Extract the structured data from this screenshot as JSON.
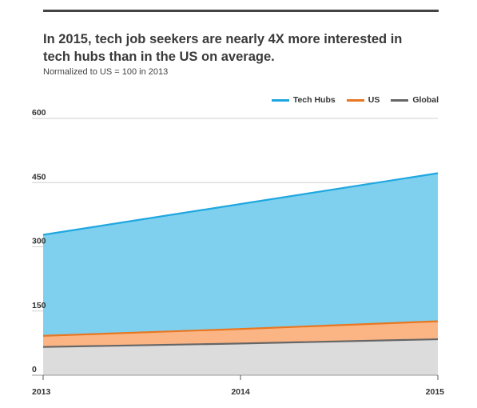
{
  "title": "In 2015, tech job seekers are nearly 4X more interested in tech hubs than in the US on average.",
  "subtitle": "Normalized to US = 100 in 2013",
  "chart_data": {
    "type": "area",
    "x": [
      "2013",
      "2014",
      "2015"
    ],
    "y_ticks": [
      "0",
      "150",
      "300",
      "450",
      "600"
    ],
    "ylim": [
      0,
      600
    ],
    "grid": true,
    "legend_position": "top-right",
    "series": [
      {
        "name": "Tech Hubs",
        "values": [
          328,
          400,
          472
        ],
        "line_color": "#1fa7e0",
        "fill_color": "#7fd0ee"
      },
      {
        "name": "US",
        "values": [
          92,
          108,
          126
        ],
        "line_color": "#e87722",
        "fill_color": "#fbb584"
      },
      {
        "name": "Global",
        "values": [
          66,
          74,
          84
        ],
        "line_color": "#666666",
        "fill_color": "#dcdcdc"
      }
    ]
  }
}
